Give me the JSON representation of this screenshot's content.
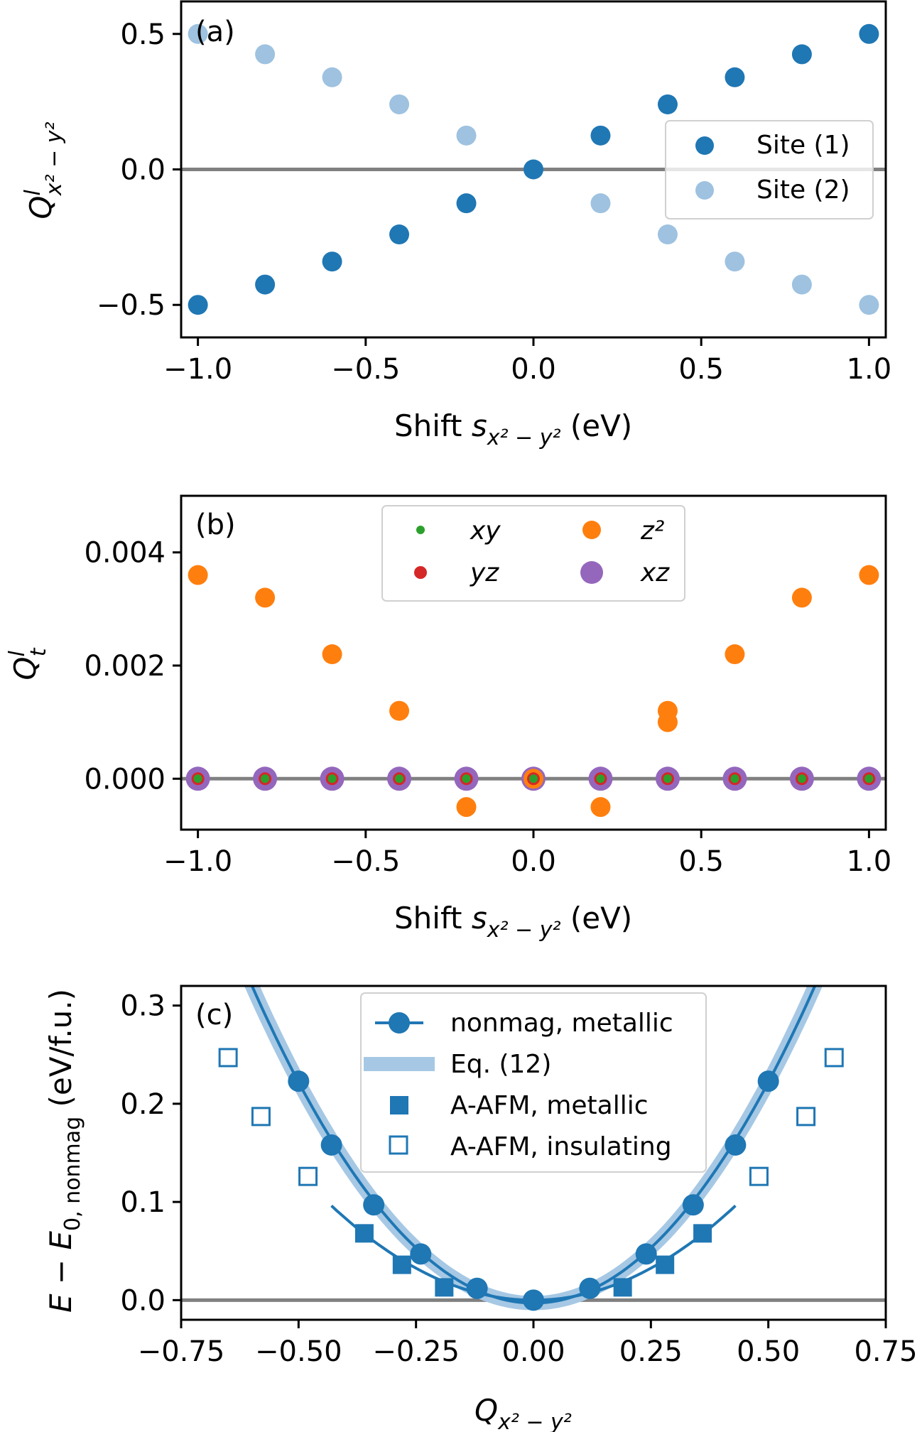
{
  "colors": {
    "site1": "#1f77b4",
    "site2": "#9ec2e0",
    "xy": "#2ca02c",
    "yz": "#d62728",
    "z2": "#ff7f0e",
    "xz": "#9467bd",
    "eq12": "#a6c8e4",
    "zero_line": "#808080"
  },
  "chart_data": [
    {
      "type": "scatter",
      "panel_label": "(a)",
      "xlabel": "Shift s_{x²−y²} (eV)",
      "ylabel": "Q^l_{x²−y²}",
      "xlim": [
        -1.05,
        1.05
      ],
      "ylim": [
        -0.62,
        0.62
      ],
      "xticks": [
        "−1.0",
        "−0.5",
        "0.0",
        "0.5",
        "1.0"
      ],
      "yticks": [
        "−0.5",
        "0.0",
        "0.5"
      ],
      "legend_position": "center-right",
      "x": [
        -1.0,
        -0.8,
        -0.6,
        -0.4,
        -0.2,
        0.0,
        0.2,
        0.4,
        0.6,
        0.8,
        1.0
      ],
      "series": [
        {
          "name": "Site (1)",
          "values": [
            -0.5,
            -0.425,
            -0.34,
            -0.24,
            -0.125,
            0.0,
            0.125,
            0.24,
            0.34,
            0.425,
            0.5
          ]
        },
        {
          "name": "Site (2)",
          "values": [
            0.5,
            0.425,
            0.34,
            0.24,
            0.125,
            0.0,
            -0.125,
            -0.24,
            -0.34,
            -0.425,
            -0.5
          ]
        }
      ]
    },
    {
      "type": "scatter",
      "panel_label": "(b)",
      "xlabel": "Shift s_{x²−y²} (eV)",
      "ylabel": "Q^l_t",
      "xlim": [
        -1.05,
        1.05
      ],
      "ylim": [
        -0.0009,
        0.005
      ],
      "xticks": [
        "−1.0",
        "−0.5",
        "0.0",
        "0.5",
        "1.0"
      ],
      "yticks": [
        "0.000",
        "0.002",
        "0.004"
      ],
      "legend_position": "top-center",
      "x": [
        -1.0,
        -0.8,
        -0.6,
        -0.4,
        -0.2,
        0.0,
        0.2,
        0.4,
        0.6,
        0.8,
        1.0
      ],
      "series": [
        {
          "name": "xy",
          "values": [
            0,
            0,
            0,
            0,
            0,
            0,
            0,
            0,
            0,
            0,
            0
          ]
        },
        {
          "name": "yz",
          "values": [
            0,
            0,
            0,
            0,
            0,
            0,
            0,
            0,
            0,
            0,
            0
          ]
        },
        {
          "name": "z²",
          "values": [
            0.0036,
            0.0032,
            0.0022,
            0.0012,
            -0.0005,
            0.0,
            -0.0005,
            0.0012,
            0.0022,
            0.0032,
            0.0036
          ],
          "extra_points": [
            [
              0.4,
              0.001
            ]
          ]
        },
        {
          "name": "xz",
          "values": [
            0,
            0,
            0,
            0,
            0,
            0,
            0,
            0,
            0,
            0,
            0
          ]
        }
      ]
    },
    {
      "type": "scatter",
      "panel_label": "(c)",
      "xlabel": "Q_{x²−y²}",
      "ylabel": "E − E_{0, nonmag} (eV/f.u.)",
      "xlim": [
        -0.75,
        0.75
      ],
      "ylim": [
        -0.02,
        0.32
      ],
      "xticks": [
        "−0.75",
        "−0.50",
        "−0.25",
        "0.00",
        "0.25",
        "0.50",
        "0.75"
      ],
      "yticks": [
        "0.0",
        "0.1",
        "0.2",
        "0.3"
      ],
      "legend_position": "top-center",
      "series": [
        {
          "name": "nonmag, metallic",
          "x": [
            -0.5,
            -0.43,
            -0.34,
            -0.24,
            -0.12,
            0.0,
            0.12,
            0.24,
            0.34,
            0.43,
            0.5
          ],
          "values": [
            0.223,
            0.158,
            0.097,
            0.047,
            0.012,
            0.0,
            0.012,
            0.047,
            0.097,
            0.158,
            0.223
          ]
        },
        {
          "name": "Eq. (12)",
          "curve": "quadratic",
          "coefficient": 0.9,
          "offset": -0.003
        },
        {
          "name": "A-AFM, metallic",
          "x": [
            -0.36,
            -0.28,
            -0.19,
            0.19,
            0.28,
            0.36
          ],
          "values": [
            0.068,
            0.036,
            0.013,
            0.013,
            0.036,
            0.068
          ]
        },
        {
          "name": "A-AFM, insulating",
          "x": [
            -0.65,
            -0.58,
            -0.48,
            0.48,
            0.58,
            0.64
          ],
          "values": [
            0.247,
            0.187,
            0.126,
            0.126,
            0.187,
            0.247
          ]
        }
      ]
    }
  ],
  "legend_a": {
    "site1": "Site (1)",
    "site2": "Site (2)"
  },
  "legend_b": {
    "xy": "xy",
    "yz": "yz",
    "z2": "z²",
    "xz": "xz"
  },
  "legend_c": {
    "nonmag": "nonmag, metallic",
    "eq12": "Eq. (12)",
    "afm_met": "A-AFM, metallic",
    "afm_ins": "A-AFM, insulating"
  }
}
